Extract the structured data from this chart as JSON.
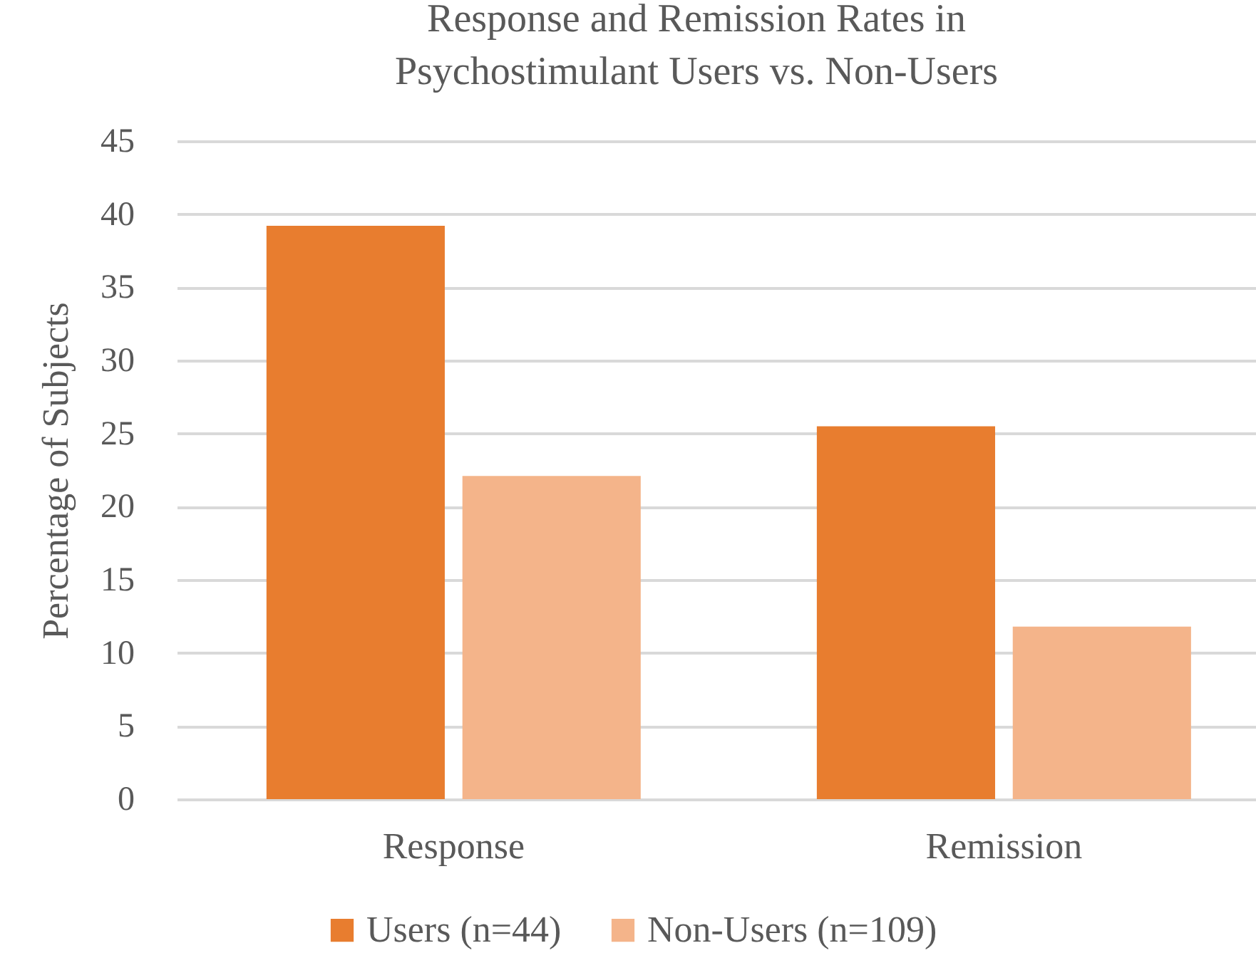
{
  "chart_data": {
    "type": "bar",
    "title": "Response and Remission Rates in Psychostimulant Users vs. Non-Users",
    "ylabel": "Percentage of Subjects",
    "categories": [
      "Response",
      "Remission"
    ],
    "series": [
      {
        "name": "Users (n=44)",
        "color": "#e87d2f",
        "values": [
          39.2,
          25.5
        ]
      },
      {
        "name": "Non-Users (n=109)",
        "color": "#f4b48a",
        "values": [
          22.1,
          11.8
        ]
      }
    ],
    "ylim": [
      0,
      45
    ],
    "yticks": [
      0,
      5,
      10,
      15,
      20,
      25,
      30,
      35,
      40,
      45
    ],
    "grid": "y",
    "legend": "bottom"
  }
}
